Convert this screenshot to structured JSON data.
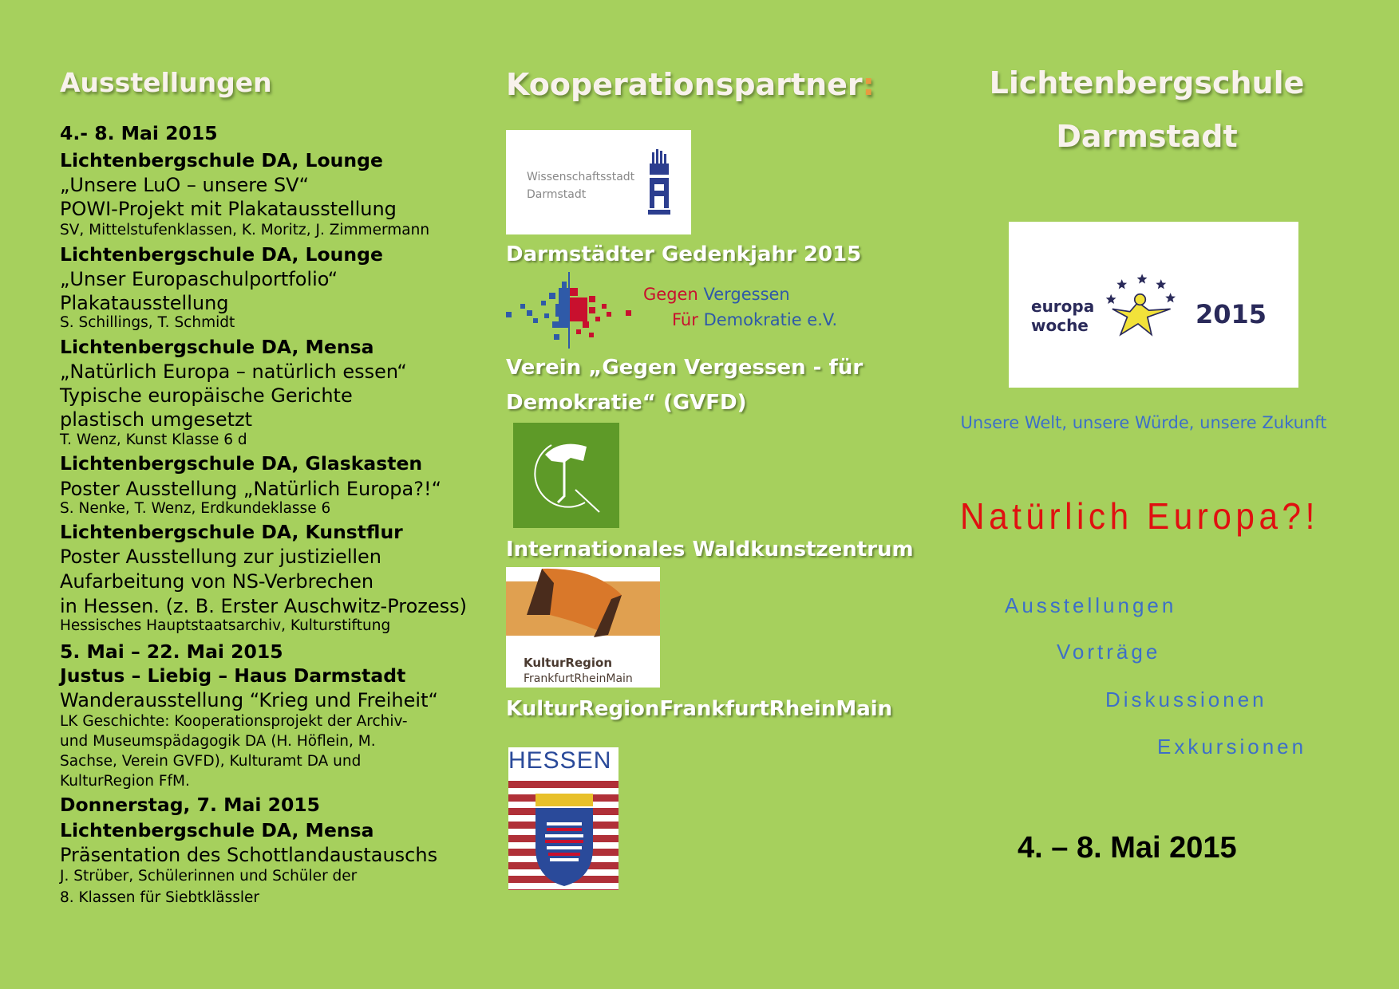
{
  "left": {
    "heading": "Ausstellungen",
    "lines": [
      {
        "t": "4.- 8. Mai 2015",
        "k": "b"
      },
      {
        "t": "Lichtenbergschule DA, Lounge",
        "k": "b"
      },
      {
        "t": " „Unsere LuO – unsere SV“",
        "k": "n"
      },
      {
        "t": "POWI-Projekt mit Plakatausstellung",
        "k": "n"
      },
      {
        "t": "SV, Mittelstufenklassen, K. Moritz, J. Zimmermann",
        "k": "s"
      },
      {
        "t": "Lichtenbergschule DA, Lounge",
        "k": "b"
      },
      {
        "t": "„Unser Europaschulportfolio“",
        "k": "n"
      },
      {
        "t": "Plakatausstellung",
        "k": "n"
      },
      {
        "t": "S. Schillings, T. Schmidt",
        "k": "s"
      },
      {
        "t": "Lichtenbergschule DA, Mensa",
        "k": "b"
      },
      {
        "t": "„Natürlich Europa – natürlich essen“",
        "k": "n"
      },
      {
        "t": "Typische europäische Gerichte",
        "k": "n"
      },
      {
        "t": "plastisch umgesetzt",
        "k": "n"
      },
      {
        "t": "T. Wenz, Kunst Klasse 6 d",
        "k": "s"
      },
      {
        "t": "Lichtenbergschule DA, Glaskasten",
        "k": "b"
      },
      {
        "t": "Poster Ausstellung „Natürlich Europa?!“",
        "k": "n"
      },
      {
        "t": "S. Nenke, T. Wenz, Erdkundeklasse 6",
        "k": "s"
      },
      {
        "t": "Lichtenbergschule DA, Kunstflur",
        "k": "b"
      },
      {
        "t": "Poster Ausstellung zur justiziellen",
        "k": "n"
      },
      {
        "t": "Aufarbeitung von NS-Verbrechen",
        "k": "n"
      },
      {
        "t": "in Hessen. (z. B. Erster Auschwitz-Prozess)",
        "k": "n"
      },
      {
        "t": "Hessisches Hauptstaatsarchiv, Kulturstiftung",
        "k": "s"
      },
      {
        "t": "5. Mai – 22. Mai 2015",
        "k": "b"
      },
      {
        "t": "Justus – Liebig – Haus Darmstadt",
        "k": "b"
      },
      {
        "t": "Wanderausstellung “Krieg und Freiheit“",
        "k": "n"
      },
      {
        "t": "LK Geschichte: Kooperationsprojekt der Archiv-",
        "k": "s"
      },
      {
        "t": "und Museumspädagogik DA (H. Höflein, M.",
        "k": "s"
      },
      {
        "t": "Sachse, Verein GVFD), Kulturamt DA und",
        "k": "s"
      },
      {
        "t": "KulturRegion FfM.",
        "k": "s"
      },
      {
        "t": "Donnerstag, 7. Mai 2015",
        "k": "b"
      },
      {
        "t": "Lichtenbergschule DA, Mensa",
        "k": "b"
      },
      {
        "t": "Präsentation des Schottlandaustauschs",
        "k": "n"
      },
      {
        "t": "J. Strüber, Schülerinnen und Schüler  der",
        "k": "s"
      },
      {
        "t": "8. Klassen für Siebtklässler",
        "k": "s"
      }
    ]
  },
  "middle": {
    "heading": "Kooperationspartner",
    "heading_colon": ":",
    "logo_wissenschaftsstadt": {
      "line1": "Wissenschaftsstadt",
      "line2": "Darmstadt"
    },
    "gedenkjahr": "Darmstädter Gedenkjahr 2015",
    "logo_gvfd": {
      "w1": "Gegen",
      "w2": "Vergessen",
      "w3": "Für",
      "w4": "Demokratie e.V."
    },
    "verein_line1": "Verein „Gegen Vergessen - für",
    "verein_line2": "Demokratie“ (GVFD)",
    "waldkunst": "Internationales Waldkunstzentrum",
    "logo_kulturregion": {
      "line1": "KulturRegion",
      "line2": "FrankfurtRheinMain"
    },
    "kulturregion": "KulturRegionFrankfurtRheinMain",
    "logo_hessen": "HESSEN"
  },
  "right": {
    "title1": "Lichtenbergschule",
    "title2": "Darmstadt",
    "logo_europawoche": {
      "w1": "europa",
      "w2": "woche",
      "year": "2015"
    },
    "slogan": "Unsere Welt, unsere Würde, unsere Zukunft",
    "motto": "Natürlich Europa?!",
    "topics": [
      "Ausstellungen",
      "Vorträge",
      "Diskussionen",
      "Exkursionen"
    ],
    "date": "4. – 8. Mai 2015"
  },
  "colors": {
    "background": "#a6d05d",
    "motto": "#e01010",
    "topics": "#3d6fc8",
    "hessen_blue": "#2a4a9a",
    "hessen_red": "#b03038"
  }
}
